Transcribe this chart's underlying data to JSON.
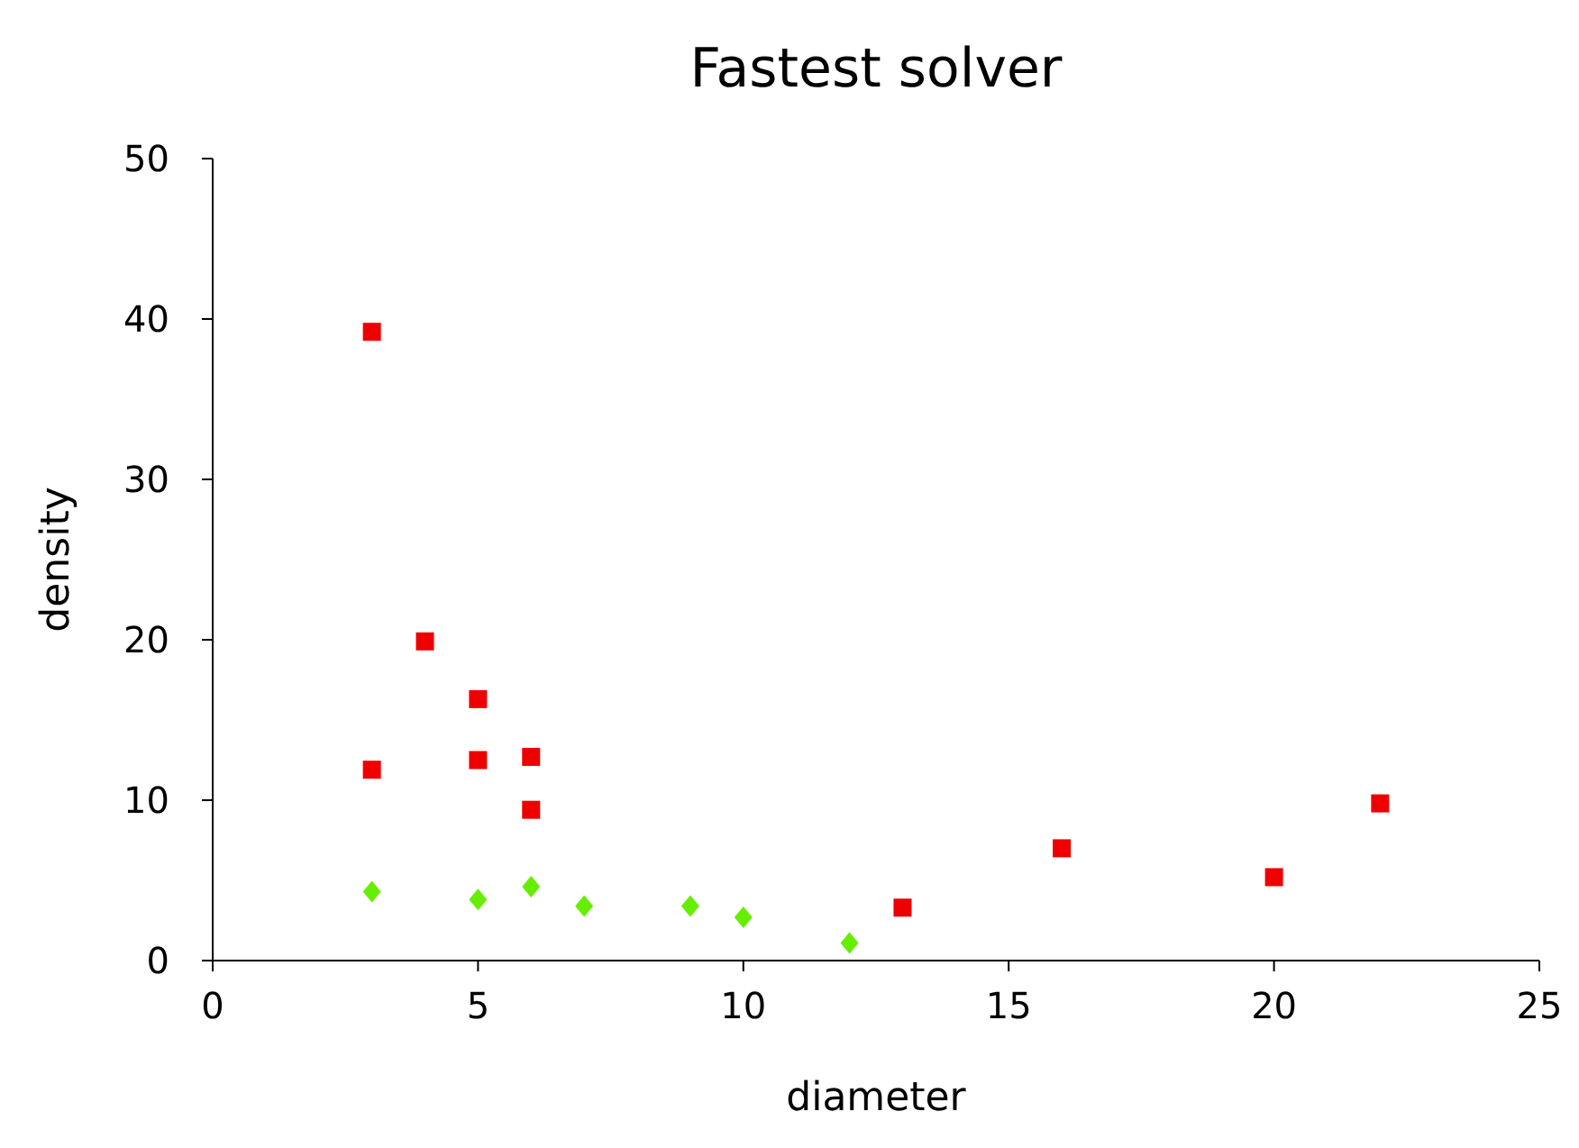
{
  "chart_data": {
    "type": "scatter",
    "title": "Fastest solver",
    "xlabel": "diameter",
    "ylabel": "density",
    "xlim": [
      0,
      25
    ],
    "xticks": [
      0,
      5,
      10,
      15,
      20,
      25
    ],
    "ylim": [
      0,
      50
    ],
    "yticks": [
      0,
      10,
      20,
      30,
      40,
      50
    ],
    "grid": false,
    "series": [
      {
        "color": "#66ee00",
        "marker": "diamond",
        "x": [
          3,
          5,
          6,
          7,
          9,
          10,
          12
        ],
        "values": [
          4.3,
          3.8,
          4.6,
          3.4,
          3.4,
          2.7,
          1.1
        ]
      },
      {
        "color": "#ee0000",
        "marker": "square",
        "x": [
          3,
          3,
          4,
          5,
          5,
          6,
          6,
          13,
          16,
          20,
          22
        ],
        "values": [
          39.2,
          11.9,
          19.9,
          16.3,
          12.5,
          12.7,
          9.4,
          3.3,
          7.0,
          5.2,
          9.8
        ]
      }
    ]
  }
}
